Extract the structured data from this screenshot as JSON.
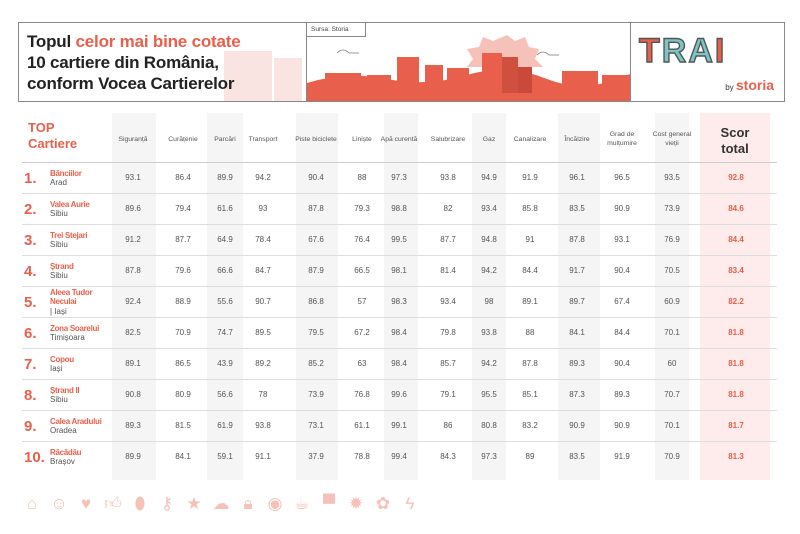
{
  "header": {
    "title_part1": "Topul ",
    "title_accent": "celor mai bine cotate",
    "title_line2": "10 cartiere din România,",
    "title_line3": "conform Vocea Cartierelor",
    "source": "Sursa: Storia",
    "logo_text": "TRAI",
    "logo_by": "by",
    "logo_brand": "storia"
  },
  "colors": {
    "accent": "#e8604c",
    "score_bg": "#fdeceb",
    "icons": "#f6c1b8"
  },
  "table": {
    "top_label_line1": "TOP",
    "top_label_line2": "Cartiere",
    "columns": [
      "Siguranță",
      "Curățenie",
      "Parcări",
      "Transport",
      "Piste biciclete",
      "Liniște",
      "Apă curentă",
      "Salubrizare",
      "Gaz",
      "Canalizare",
      "Încălzire",
      "Grad de mulțumire",
      "Cost general vieții"
    ],
    "score_label_line1": "Scor",
    "score_label_line2": "total",
    "rows": [
      {
        "rank": "1.",
        "name": "Bănciilor",
        "city": "Arad",
        "values": [
          "93.1",
          "86.4",
          "89.9",
          "94.2",
          "90.4",
          "88",
          "97.3",
          "93.8",
          "94.9",
          "91.9",
          "96.1",
          "96.5",
          "93.5"
        ],
        "score": "92.8"
      },
      {
        "rank": "2.",
        "name": "Valea Aurie",
        "city": "Sibiu",
        "values": [
          "89.6",
          "79.4",
          "61.6",
          "93",
          "87.8",
          "79.3",
          "98.8",
          "82",
          "93.4",
          "85.8",
          "83.5",
          "90.9",
          "73.9"
        ],
        "score": "84.6"
      },
      {
        "rank": "3.",
        "name": "Trei Stejari",
        "city": "Sibiu",
        "values": [
          "91.2",
          "87.7",
          "64.9",
          "78.4",
          "67.6",
          "76.4",
          "99.5",
          "87.7",
          "94.8",
          "91",
          "87.8",
          "93.1",
          "76.9"
        ],
        "score": "84.4"
      },
      {
        "rank": "4.",
        "name": "Ștrand",
        "city": "Sibiu",
        "values": [
          "87.8",
          "79.6",
          "66.6",
          "84.7",
          "87.9",
          "66.5",
          "98.1",
          "81.4",
          "94.2",
          "84.4",
          "91.7",
          "90.4",
          "70.5"
        ],
        "score": "83.4"
      },
      {
        "rank": "5.",
        "name": "Aleea Tudor Neculai",
        "city": " | Iași",
        "values": [
          "92.4",
          "88.9",
          "55.6",
          "90.7",
          "86.8",
          "57",
          "98.3",
          "93.4",
          "98",
          "89.1",
          "89.7",
          "67.4",
          "60.9"
        ],
        "score": "82.2"
      },
      {
        "rank": "6.",
        "name": "Zona Soarelui",
        "city": "Timișoara",
        "values": [
          "82.5",
          "70.9",
          "74.7",
          "89.5",
          "79.5",
          "67.2",
          "98.4",
          "79.8",
          "93.8",
          "88",
          "84.1",
          "84.4",
          "70.1"
        ],
        "score": "81.8"
      },
      {
        "rank": "7.",
        "name": "Copou",
        "city": "Iași",
        "values": [
          "89.1",
          "86.5",
          "43.9",
          "89.2",
          "85.2",
          "63",
          "98.4",
          "85.7",
          "94.2",
          "87.8",
          "89.3",
          "90.4",
          "60"
        ],
        "score": "81.8"
      },
      {
        "rank": "8.",
        "name": "Ștrand II",
        "city": "Sibiu",
        "values": [
          "90.8",
          "80.9",
          "56.6",
          "78",
          "73.9",
          "76.8",
          "99.6",
          "79.1",
          "95.5",
          "85.1",
          "87.3",
          "89.3",
          "70.7"
        ],
        "score": "81.8"
      },
      {
        "rank": "9.",
        "name": "Calea Aradului",
        "city": "Oradea",
        "values": [
          "89.3",
          "81.5",
          "61.9",
          "93.8",
          "73.1",
          "61.1",
          "99.1",
          "86",
          "80.8",
          "83.2",
          "90.9",
          "90.9",
          "70.1"
        ],
        "score": "81.7"
      },
      {
        "rank": "10.",
        "name": "Răcădău",
        "city": "Brașov",
        "values": [
          "89.9",
          "84.1",
          "59.1",
          "91.1",
          "37.9",
          "78.8",
          "99.4",
          "84.3",
          "97.3",
          "89",
          "83.5",
          "91.9",
          "70.9"
        ],
        "score": "81.3"
      }
    ]
  },
  "footer_icons": [
    "house-icon",
    "smiley-icon",
    "heart-icon",
    "thumbs-up-icon",
    "location-pin-icon",
    "key-icon",
    "star-icon",
    "cloud-icon",
    "lock-icon",
    "eye-icon",
    "cup-icon",
    "speech-bubble-icon",
    "sun-icon",
    "flower-icon",
    "lightning-icon"
  ]
}
